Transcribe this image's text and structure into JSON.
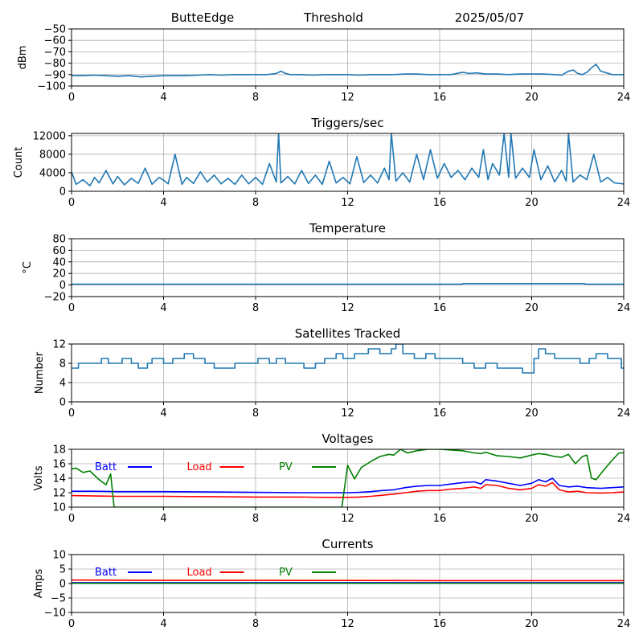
{
  "header": {
    "station": "ButteEdge",
    "mode": "Threshold",
    "date": "2025/05/07"
  },
  "chart_data": [
    {
      "id": "threshold",
      "type": "line",
      "title": "",
      "xlabel": "",
      "ylabel": "dBm",
      "xlim": [
        0,
        24
      ],
      "ylim": [
        -100,
        -50
      ],
      "xticks": [
        0,
        4,
        8,
        12,
        16,
        20,
        24
      ],
      "yticks": [
        -100,
        -90,
        -80,
        -70,
        -60,
        -50
      ],
      "grid": true,
      "series": [
        {
          "color": "#1f77b4",
          "x": [
            0,
            0.5,
            1,
            1.5,
            2,
            2.5,
            3,
            3.5,
            4,
            4.5,
            5,
            5.5,
            6,
            6.5,
            7,
            7.5,
            8,
            8.5,
            8.9,
            9.1,
            9.3,
            9.5,
            10,
            10.5,
            11,
            11.5,
            12,
            12.5,
            13,
            13.5,
            14,
            14.5,
            15,
            15.5,
            16,
            16.5,
            17,
            17.3,
            17.6,
            18,
            18.5,
            19,
            19.5,
            20,
            20.5,
            21,
            21.3,
            21.6,
            21.8,
            22,
            22.2,
            22.4,
            22.6,
            22.8,
            23,
            23.5,
            24
          ],
          "y": [
            -91,
            -91,
            -90.5,
            -91,
            -91.5,
            -91,
            -92,
            -91.5,
            -91,
            -91,
            -91,
            -90.5,
            -90,
            -90.5,
            -90,
            -90,
            -90,
            -90,
            -89,
            -87,
            -89,
            -90,
            -90,
            -90.5,
            -90,
            -90,
            -90,
            -90.5,
            -90,
            -90,
            -90,
            -89.5,
            -89.5,
            -90,
            -90,
            -90,
            -88,
            -89,
            -88.5,
            -89.5,
            -89.5,
            -90,
            -89.5,
            -89.5,
            -89.5,
            -90,
            -90.5,
            -87,
            -86,
            -89,
            -90,
            -88,
            -84,
            -81,
            -87,
            -90,
            -90
          ]
        }
      ]
    },
    {
      "id": "triggers",
      "type": "line",
      "title": "Triggers/sec",
      "xlabel": "",
      "ylabel": "Count",
      "xlim": [
        0,
        24
      ],
      "ylim": [
        0,
        12500
      ],
      "xticks": [
        0,
        4,
        8,
        12,
        16,
        20,
        24
      ],
      "yticks": [
        0,
        4000,
        8000,
        12000
      ],
      "grid": true,
      "series": [
        {
          "color": "#1f77b4",
          "x": [
            0,
            0.2,
            0.5,
            0.8,
            1.0,
            1.2,
            1.5,
            1.8,
            2.0,
            2.3,
            2.6,
            2.9,
            3.2,
            3.5,
            3.8,
            4.0,
            4.2,
            4.5,
            4.8,
            5.0,
            5.3,
            5.6,
            5.9,
            6.2,
            6.5,
            6.8,
            7.1,
            7.4,
            7.7,
            8.0,
            8.3,
            8.6,
            8.9,
            9.0,
            9.1,
            9.4,
            9.7,
            10.0,
            10.3,
            10.6,
            10.9,
            11.2,
            11.5,
            11.8,
            12.1,
            12.4,
            12.7,
            13.0,
            13.3,
            13.6,
            13.8,
            13.9,
            14.1,
            14.4,
            14.7,
            15.0,
            15.3,
            15.6,
            15.9,
            16.2,
            16.5,
            16.8,
            17.1,
            17.4,
            17.7,
            17.9,
            18.1,
            18.3,
            18.6,
            18.8,
            19.0,
            19.1,
            19.3,
            19.6,
            19.9,
            20.1,
            20.4,
            20.7,
            21.0,
            21.3,
            21.5,
            21.6,
            21.8,
            22.1,
            22.4,
            22.7,
            23.0,
            23.3,
            23.6,
            24.0
          ],
          "y": [
            4200,
            1500,
            2500,
            1200,
            3000,
            1800,
            4500,
            1600,
            3200,
            1400,
            2800,
            1700,
            5000,
            1500,
            3000,
            2400,
            1600,
            8000,
            1500,
            3000,
            1700,
            4200,
            2000,
            3500,
            1600,
            2800,
            1500,
            3500,
            1600,
            3000,
            1500,
            6000,
            2000,
            12500,
            1800,
            3200,
            1600,
            4500,
            1700,
            3500,
            1500,
            6500,
            1800,
            3000,
            1600,
            7500,
            1900,
            3500,
            1800,
            5000,
            2500,
            12500,
            2200,
            4000,
            2000,
            8000,
            2500,
            9000,
            2800,
            6000,
            3000,
            4500,
            2500,
            5000,
            3000,
            9000,
            2500,
            6000,
            3500,
            12500,
            3000,
            12500,
            2800,
            5000,
            3000,
            9000,
            2500,
            5500,
            2000,
            4500,
            2200,
            12500,
            2000,
            3500,
            2500,
            8000,
            2000,
            3000,
            1800,
            1600
          ]
        }
      ]
    },
    {
      "id": "temperature",
      "type": "line",
      "title": "Temperature",
      "xlabel": "",
      "ylabel": "°C",
      "xlim": [
        0,
        24
      ],
      "ylim": [
        -20,
        80
      ],
      "xticks": [
        0,
        4,
        8,
        12,
        16,
        20,
        24
      ],
      "yticks": [
        -20,
        0,
        20,
        40,
        60,
        80
      ],
      "grid": true,
      "series": [
        {
          "color": "#1f77b4",
          "x": [
            0,
            17,
            17.01,
            22.3,
            22.31,
            24
          ],
          "y": [
            1.5,
            1.5,
            2.5,
            2.5,
            1.5,
            1.5
          ]
        }
      ]
    },
    {
      "id": "satellites",
      "type": "line",
      "title": "Satellites Tracked",
      "xlabel": "",
      "ylabel": "Number",
      "xlim": [
        0,
        24
      ],
      "ylim": [
        0,
        12
      ],
      "xticks": [
        0,
        4,
        8,
        12,
        16,
        20,
        24
      ],
      "yticks": [
        0,
        4,
        8,
        12
      ],
      "grid": true,
      "series": [
        {
          "color": "#1f77b4",
          "step": true,
          "x": [
            0,
            0.3,
            1.3,
            1.6,
            2.2,
            2.6,
            2.9,
            3.3,
            3.5,
            4.0,
            4.4,
            4.9,
            5.3,
            5.8,
            6.2,
            6.6,
            7.1,
            7.6,
            8.1,
            8.6,
            8.9,
            9.3,
            9.7,
            10.1,
            10.6,
            11.0,
            11.5,
            11.8,
            12.3,
            12.9,
            13.4,
            13.9,
            14.1,
            14.4,
            14.9,
            15.4,
            15.8,
            16.3,
            17.0,
            17.5,
            18.0,
            18.5,
            19.0,
            19.6,
            20.1,
            20.3,
            20.6,
            21.0,
            21.5,
            22.1,
            22.5,
            22.8,
            23.3,
            23.6,
            23.9,
            24
          ],
          "y": [
            7,
            8,
            9,
            8,
            9,
            8,
            7,
            8,
            9,
            8,
            9,
            10,
            9,
            8,
            7,
            7,
            8,
            8,
            9,
            8,
            9,
            8,
            8,
            7,
            8,
            9,
            10,
            9,
            10,
            11,
            10,
            11,
            12,
            10,
            9,
            10,
            9,
            9,
            8,
            7,
            8,
            7,
            7,
            6,
            9,
            11,
            10,
            9,
            9,
            8,
            9,
            10,
            9,
            9,
            7,
            7
          ]
        }
      ]
    },
    {
      "id": "voltages",
      "type": "line",
      "title": "Voltages",
      "xlabel": "",
      "ylabel": "Volts",
      "xlim": [
        0,
        24
      ],
      "ylim": [
        10,
        18
      ],
      "xticks": [
        0,
        4,
        8,
        12,
        16,
        20,
        24
      ],
      "yticks": [
        10,
        12,
        14,
        16,
        18
      ],
      "grid": true,
      "legend": "top-left",
      "series": [
        {
          "name": "Batt",
          "color": "#0000ff",
          "x": [
            0,
            1,
            2,
            4,
            6,
            8,
            10,
            11,
            12,
            12.5,
            13,
            13.5,
            14,
            14.5,
            15,
            15.5,
            16,
            16.5,
            17,
            17.5,
            17.8,
            18,
            18.5,
            19,
            19.5,
            20,
            20.3,
            20.6,
            20.9,
            21.2,
            21.6,
            22,
            22.4,
            23,
            23.5,
            24
          ],
          "y": [
            12.2,
            12.2,
            12.15,
            12.15,
            12.1,
            12.05,
            12.0,
            12.0,
            12.0,
            12.05,
            12.15,
            12.3,
            12.4,
            12.7,
            12.9,
            13.0,
            13.0,
            13.2,
            13.4,
            13.5,
            13.2,
            13.8,
            13.6,
            13.3,
            13.0,
            13.3,
            13.8,
            13.5,
            14.0,
            13.0,
            12.8,
            12.9,
            12.7,
            12.6,
            12.7,
            12.8
          ]
        },
        {
          "name": "Load",
          "color": "#ff0000",
          "x": [
            0,
            1,
            2,
            4,
            6,
            8,
            10,
            11,
            12,
            12.5,
            13,
            13.5,
            14,
            14.5,
            15,
            15.5,
            16,
            16.5,
            17,
            17.5,
            17.8,
            18,
            18.5,
            19,
            19.5,
            20,
            20.3,
            20.6,
            20.9,
            21.2,
            21.6,
            22,
            22.4,
            23,
            23.5,
            24
          ],
          "y": [
            11.6,
            11.55,
            11.5,
            11.5,
            11.45,
            11.4,
            11.4,
            11.35,
            11.35,
            11.4,
            11.5,
            11.65,
            11.8,
            12.0,
            12.2,
            12.3,
            12.3,
            12.5,
            12.6,
            12.8,
            12.6,
            13.1,
            13.0,
            12.6,
            12.4,
            12.6,
            13.1,
            12.9,
            13.4,
            12.4,
            12.1,
            12.2,
            12.0,
            11.95,
            12.0,
            12.1
          ]
        },
        {
          "name": "PV",
          "color": "#008000",
          "x": [
            0,
            0.2,
            0.5,
            0.8,
            1.2,
            1.5,
            1.7,
            1.85,
            11.75,
            12.0,
            12.3,
            12.6,
            13.0,
            13.4,
            13.8,
            14.0,
            14.3,
            14.6,
            15,
            15.5,
            16,
            16.5,
            17,
            17.5,
            17.8,
            18,
            18.5,
            19,
            19.5,
            20,
            20.3,
            20.6,
            21,
            21.3,
            21.6,
            21.9,
            22.2,
            22.4,
            22.6,
            22.8,
            23.1,
            23.5,
            23.8,
            24
          ],
          "y": [
            15.3,
            15.4,
            14.8,
            15.0,
            13.8,
            13.1,
            14.6,
            10.0,
            10.0,
            15.8,
            13.9,
            15.5,
            16.3,
            17.0,
            17.3,
            17.2,
            18.0,
            17.5,
            17.8,
            18.0,
            18.0,
            17.9,
            17.8,
            17.5,
            17.4,
            17.6,
            17.1,
            17.0,
            16.8,
            17.2,
            17.4,
            17.3,
            17.0,
            16.9,
            17.3,
            16.0,
            17.0,
            17.2,
            14.0,
            13.8,
            15.0,
            16.5,
            17.5,
            17.5
          ]
        }
      ]
    },
    {
      "id": "currents",
      "type": "line",
      "title": "Currents",
      "xlabel": "",
      "ylabel": "Amps",
      "xlim": [
        0,
        24
      ],
      "ylim": [
        -10,
        10
      ],
      "xticks": [
        0,
        4,
        8,
        12,
        16,
        20,
        24
      ],
      "yticks": [
        -10,
        -5,
        0,
        5,
        10
      ],
      "grid": true,
      "legend": "top-left",
      "series": [
        {
          "name": "Batt",
          "color": "#0000ff",
          "x": [
            0,
            24
          ],
          "y": [
            0.3,
            0.3
          ]
        },
        {
          "name": "Load",
          "color": "#ff0000",
          "x": [
            0,
            4,
            8,
            12,
            16,
            20,
            24
          ],
          "y": [
            1.2,
            1.1,
            1.1,
            1.05,
            1.0,
            1.0,
            1.0
          ]
        },
        {
          "name": "PV",
          "color": "#008000",
          "x": [
            0,
            24
          ],
          "y": [
            0.1,
            0.1
          ]
        }
      ]
    }
  ]
}
